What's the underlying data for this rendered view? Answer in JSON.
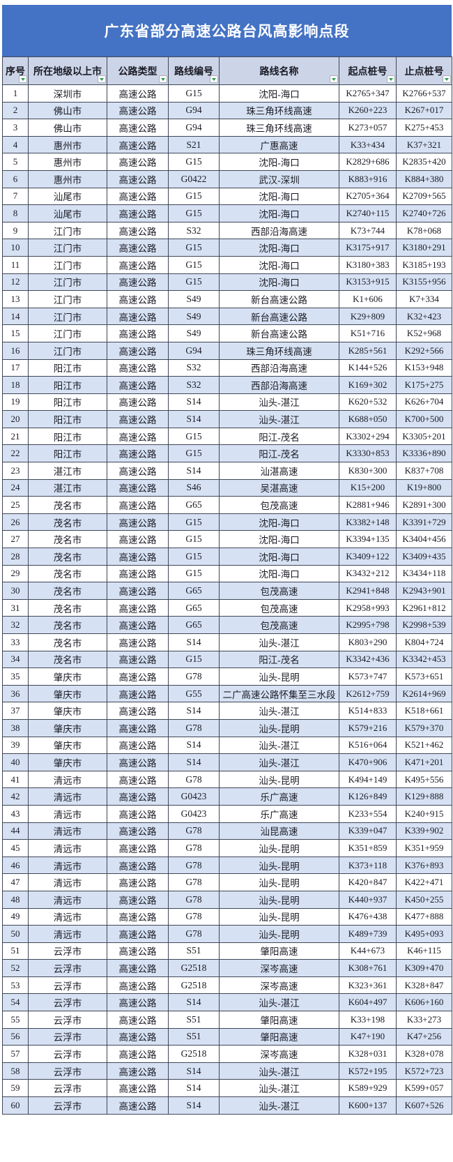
{
  "title": "广东省部分高速公路台风高影响点段",
  "table": {
    "columns": [
      "序号",
      "所在地级以上市",
      "公路类型",
      "路线编号",
      "路线名称",
      "起点桩号",
      "止点桩号"
    ],
    "rows": [
      [
        "1",
        "深圳市",
        "高速公路",
        "G15",
        "沈阳-海口",
        "K2765+347",
        "K2766+537"
      ],
      [
        "2",
        "佛山市",
        "高速公路",
        "G94",
        "珠三角环线高速",
        "K260+223",
        "K267+017"
      ],
      [
        "3",
        "佛山市",
        "高速公路",
        "G94",
        "珠三角环线高速",
        "K273+057",
        "K275+453"
      ],
      [
        "4",
        "惠州市",
        "高速公路",
        "S21",
        "广惠高速",
        "K33+434",
        "K37+321"
      ],
      [
        "5",
        "惠州市",
        "高速公路",
        "G15",
        "沈阳-海口",
        "K2829+686",
        "K2835+420"
      ],
      [
        "6",
        "惠州市",
        "高速公路",
        "G0422",
        "武汉-深圳",
        "K883+916",
        "K884+380"
      ],
      [
        "7",
        "汕尾市",
        "高速公路",
        "G15",
        "沈阳-海口",
        "K2705+364",
        "K2709+565"
      ],
      [
        "8",
        "汕尾市",
        "高速公路",
        "G15",
        "沈阳-海口",
        "K2740+115",
        "K2740+726"
      ],
      [
        "9",
        "江门市",
        "高速公路",
        "S32",
        "西部沿海高速",
        "K73+744",
        "K78+068"
      ],
      [
        "10",
        "江门市",
        "高速公路",
        "G15",
        "沈阳-海口",
        "K3175+917",
        "K3180+291"
      ],
      [
        "11",
        "江门市",
        "高速公路",
        "G15",
        "沈阳-海口",
        "K3180+383",
        "K3185+193"
      ],
      [
        "12",
        "江门市",
        "高速公路",
        "G15",
        "沈阳-海口",
        "K3153+915",
        "K3155+956"
      ],
      [
        "13",
        "江门市",
        "高速公路",
        "S49",
        "新台高速公路",
        "K1+606",
        "K7+334"
      ],
      [
        "14",
        "江门市",
        "高速公路",
        "S49",
        "新台高速公路",
        "K29+809",
        "K32+423"
      ],
      [
        "15",
        "江门市",
        "高速公路",
        "S49",
        "新台高速公路",
        "K51+716",
        "K52+968"
      ],
      [
        "16",
        "江门市",
        "高速公路",
        "G94",
        "珠三角环线高速",
        "K285+561",
        "K292+566"
      ],
      [
        "17",
        "阳江市",
        "高速公路",
        "S32",
        "西部沿海高速",
        "K144+526",
        "K153+948"
      ],
      [
        "18",
        "阳江市",
        "高速公路",
        "S32",
        "西部沿海高速",
        "K169+302",
        "K175+275"
      ],
      [
        "19",
        "阳江市",
        "高速公路",
        "S14",
        "汕头-湛江",
        "K620+532",
        "K626+704"
      ],
      [
        "20",
        "阳江市",
        "高速公路",
        "S14",
        "汕头-湛江",
        "K688+050",
        "K700+500"
      ],
      [
        "21",
        "阳江市",
        "高速公路",
        "G15",
        "阳江-茂名",
        "K3302+294",
        "K3305+201"
      ],
      [
        "22",
        "阳江市",
        "高速公路",
        "G15",
        "阳江-茂名",
        "K3330+853",
        "K3336+890"
      ],
      [
        "23",
        "湛江市",
        "高速公路",
        "S14",
        "汕湛高速",
        "K830+300",
        "K837+708"
      ],
      [
        "24",
        "湛江市",
        "高速公路",
        "S46",
        "吴湛高速",
        "K15+200",
        "K19+800"
      ],
      [
        "25",
        "茂名市",
        "高速公路",
        "G65",
        "包茂高速",
        "K2881+946",
        "K2891+300"
      ],
      [
        "26",
        "茂名市",
        "高速公路",
        "G15",
        "沈阳-海口",
        "K3382+148",
        "K3391+729"
      ],
      [
        "27",
        "茂名市",
        "高速公路",
        "G15",
        "沈阳-海口",
        "K3394+135",
        "K3404+456"
      ],
      [
        "28",
        "茂名市",
        "高速公路",
        "G15",
        "沈阳-海口",
        "K3409+122",
        "K3409+435"
      ],
      [
        "29",
        "茂名市",
        "高速公路",
        "G15",
        "沈阳-海口",
        "K3432+212",
        "K3434+118"
      ],
      [
        "30",
        "茂名市",
        "高速公路",
        "G65",
        "包茂高速",
        "K2941+848",
        "K2943+901"
      ],
      [
        "31",
        "茂名市",
        "高速公路",
        "G65",
        "包茂高速",
        "K2958+993",
        "K2961+812"
      ],
      [
        "32",
        "茂名市",
        "高速公路",
        "G65",
        "包茂高速",
        "K2995+798",
        "K2998+539"
      ],
      [
        "33",
        "茂名市",
        "高速公路",
        "S14",
        "汕头-湛江",
        "K803+290",
        "K804+724"
      ],
      [
        "34",
        "茂名市",
        "高速公路",
        "G15",
        "阳江-茂名",
        "K3342+436",
        "K3342+453"
      ],
      [
        "35",
        "肇庆市",
        "高速公路",
        "G78",
        "汕头-昆明",
        "K573+747",
        "K573+651"
      ],
      [
        "36",
        "肇庆市",
        "高速公路",
        "G55",
        "二广高速公路怀集至三水段",
        "K2612+759",
        "K2614+969"
      ],
      [
        "37",
        "肇庆市",
        "高速公路",
        "S14",
        "汕头-湛江",
        "K514+833",
        "K518+661"
      ],
      [
        "38",
        "肇庆市",
        "高速公路",
        "G78",
        "汕头-昆明",
        "K579+216",
        "K579+370"
      ],
      [
        "39",
        "肇庆市",
        "高速公路",
        "S14",
        "汕头-湛江",
        "K516+064",
        "K521+462"
      ],
      [
        "40",
        "肇庆市",
        "高速公路",
        "S14",
        "汕头-湛江",
        "K470+906",
        "K471+201"
      ],
      [
        "41",
        "清远市",
        "高速公路",
        "G78",
        "汕头-昆明",
        "K494+149",
        "K495+556"
      ],
      [
        "42",
        "清远市",
        "高速公路",
        "G0423",
        "乐广高速",
        "K126+849",
        "K129+888"
      ],
      [
        "43",
        "清远市",
        "高速公路",
        "G0423",
        "乐广高速",
        "K233+554",
        "K240+915"
      ],
      [
        "44",
        "清远市",
        "高速公路",
        "G78",
        "汕昆高速",
        "K339+047",
        "K339+902"
      ],
      [
        "45",
        "清远市",
        "高速公路",
        "G78",
        "汕头-昆明",
        "K351+859",
        "K351+959"
      ],
      [
        "46",
        "清远市",
        "高速公路",
        "G78",
        "汕头-昆明",
        "K373+118",
        "K376+893"
      ],
      [
        "47",
        "清远市",
        "高速公路",
        "G78",
        "汕头-昆明",
        "K420+847",
        "K422+471"
      ],
      [
        "48",
        "清远市",
        "高速公路",
        "G78",
        "汕头-昆明",
        "K440+937",
        "K450+255"
      ],
      [
        "49",
        "清远市",
        "高速公路",
        "G78",
        "汕头-昆明",
        "K476+438",
        "K477+888"
      ],
      [
        "50",
        "清远市",
        "高速公路",
        "G78",
        "汕头-昆明",
        "K489+739",
        "K495+093"
      ],
      [
        "51",
        "云浮市",
        "高速公路",
        "S51",
        "肇阳高速",
        "K44+673",
        "K46+115"
      ],
      [
        "52",
        "云浮市",
        "高速公路",
        "G2518",
        "深岑高速",
        "K308+761",
        "K309+470"
      ],
      [
        "53",
        "云浮市",
        "高速公路",
        "G2518",
        "深岑高速",
        "K323+361",
        "K328+847"
      ],
      [
        "54",
        "云浮市",
        "高速公路",
        "S14",
        "汕头-湛江",
        "K604+497",
        "K606+160"
      ],
      [
        "55",
        "云浮市",
        "高速公路",
        "S51",
        "肇阳高速",
        "K33+198",
        "K33+273"
      ],
      [
        "56",
        "云浮市",
        "高速公路",
        "S51",
        "肇阳高速",
        "K47+190",
        "K47+256"
      ],
      [
        "57",
        "云浮市",
        "高速公路",
        "G2518",
        "深岑高速",
        "K328+031",
        "K328+078"
      ],
      [
        "58",
        "云浮市",
        "高速公路",
        "S14",
        "汕头-湛江",
        "K572+195",
        "K572+723"
      ],
      [
        "59",
        "云浮市",
        "高速公路",
        "S14",
        "汕头-湛江",
        "K589+929",
        "K599+057"
      ],
      [
        "60",
        "云浮市",
        "高速公路",
        "S14",
        "汕头-湛江",
        "K600+137",
        "K607+526"
      ]
    ]
  },
  "icons": {
    "header_filter": "filter-dropdown-icon"
  },
  "colors": {
    "banner_blue": "#4472c4",
    "header_bg": "#ccd5e8",
    "row_alt_bg": "#d6e2f3",
    "row_bg": "#ffffff",
    "border": "#3f4656",
    "text": "#1a1a24",
    "title_text": "#ffffff",
    "filter_arrow_green": "#2e9e4f"
  }
}
